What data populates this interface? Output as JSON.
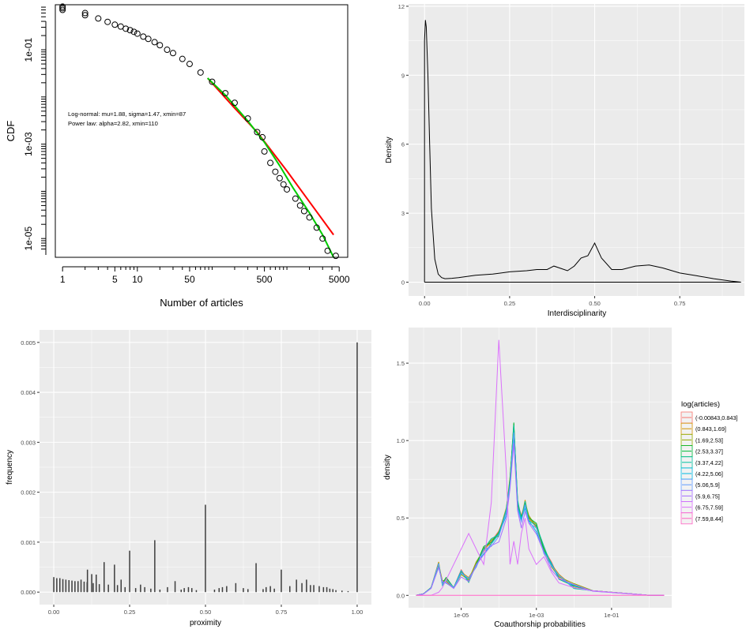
{
  "colors": {
    "panel_bg": "#ebebeb",
    "grid": "#ffffff",
    "ink": "#000000",
    "bar": "#3d3d3d",
    "powerlaw_line": "#ff0000",
    "lognormal_line": "#00cc00",
    "legend_palette": [
      "#f8766d",
      "#d39200",
      "#93aa00",
      "#00ba38",
      "#00c19f",
      "#00b9e3",
      "#619cff",
      "#a56dff",
      "#db72fb",
      "#ff61c3"
    ]
  },
  "chart_data": [
    {
      "id": "cdf",
      "type": "scatter",
      "xlabel": "Number of articles",
      "ylabel": "CDF",
      "x_scale": "log",
      "y_scale": "log",
      "xlim": [
        1,
        5000
      ],
      "ylim": [
        4e-06,
        0.9
      ],
      "xticks": [
        1,
        5,
        10,
        50,
        500,
        5000
      ],
      "xtick_labels": [
        "1",
        "5",
        "10",
        "50",
        "500",
        "5000"
      ],
      "yticks": [
        0.1,
        0.001,
        1e-05
      ],
      "ytick_labels": [
        "1e-01",
        "1e-03",
        "1e-05"
      ],
      "annotations": [
        "Log-normal: mu=1.88, sigma=1.47, xmin=87",
        "Power law: alpha=2.82, xmin=110"
      ],
      "points": [
        [
          1,
          0.82
        ],
        [
          1,
          0.76
        ],
        [
          1,
          0.7
        ],
        [
          2,
          0.6
        ],
        [
          2,
          0.54
        ],
        [
          3,
          0.46
        ],
        [
          4,
          0.39
        ],
        [
          5,
          0.34
        ],
        [
          6,
          0.31
        ],
        [
          7,
          0.28
        ],
        [
          8,
          0.26
        ],
        [
          9,
          0.24
        ],
        [
          10,
          0.22
        ],
        [
          12,
          0.19
        ],
        [
          14,
          0.17
        ],
        [
          17,
          0.145
        ],
        [
          20,
          0.125
        ],
        [
          25,
          0.1
        ],
        [
          30,
          0.085
        ],
        [
          40,
          0.064
        ],
        [
          50,
          0.05
        ],
        [
          70,
          0.033
        ],
        [
          100,
          0.021
        ],
        [
          150,
          0.012
        ],
        [
          200,
          0.0075
        ],
        [
          300,
          0.0035
        ],
        [
          400,
          0.0018
        ],
        [
          470,
          0.0014
        ],
        [
          500,
          0.0007
        ],
        [
          600,
          0.0004
        ],
        [
          700,
          0.00026
        ],
        [
          800,
          0.00019
        ],
        [
          900,
          0.00014
        ],
        [
          1000,
          0.00011
        ],
        [
          1300,
          7e-05
        ],
        [
          1500,
          5e-05
        ],
        [
          1700,
          3.8e-05
        ],
        [
          2000,
          2.8e-05
        ],
        [
          2500,
          1.7e-05
        ],
        [
          3000,
          1e-05
        ],
        [
          3500,
          5.5e-06
        ],
        [
          4500,
          4.3e-06
        ]
      ],
      "series": [
        {
          "line": [
            [
              87,
              0.025
            ],
            [
              200,
              0.0058
            ],
            [
              400,
              0.0018
            ],
            [
              1000,
              0.00027
            ],
            [
              2000,
              6e-05
            ],
            [
              4200,
              1.2e-05
            ]
          ],
          "color_key": "powerlaw_line"
        },
        {
          "line": [
            [
              87,
              0.025
            ],
            [
              150,
              0.011
            ],
            [
              300,
              0.0031
            ],
            [
              500,
              0.0011
            ],
            [
              800,
              0.00035
            ],
            [
              1200,
              0.00012
            ],
            [
              2000,
              3.5e-05
            ],
            [
              3000,
              1.2e-05
            ],
            [
              4200,
              4e-06
            ]
          ],
          "color_key": "lognormal_line"
        }
      ]
    },
    {
      "id": "interdisciplinarity",
      "type": "line",
      "xlabel": "Interdisciplinarity",
      "ylabel": "Density",
      "xlim": [
        -0.047,
        0.94
      ],
      "ylim": [
        -0.6,
        12.1
      ],
      "xticks": [
        0,
        0.25,
        0.5,
        0.75
      ],
      "xtick_labels": [
        "0.00",
        "0.25",
        "0.50",
        "0.75"
      ],
      "yticks": [
        0,
        3,
        6,
        9,
        12
      ],
      "ytick_labels": [
        "0",
        "3",
        "6",
        "9",
        "12"
      ],
      "x": [
        0,
        0.0025,
        0.005,
        0.01,
        0.015,
        0.02,
        0.03,
        0.04,
        0.05,
        0.06,
        0.08,
        0.1,
        0.15,
        0.2,
        0.25,
        0.3,
        0.33,
        0.36,
        0.38,
        0.4,
        0.42,
        0.44,
        0.46,
        0.48,
        0.5,
        0.52,
        0.55,
        0.58,
        0.62,
        0.66,
        0.7,
        0.75,
        0.8,
        0.85,
        0.9,
        0.93
      ],
      "y": [
        10.5,
        11.4,
        11.1,
        9.0,
        6.0,
        3.2,
        1.0,
        0.35,
        0.2,
        0.15,
        0.17,
        0.2,
        0.3,
        0.35,
        0.45,
        0.5,
        0.55,
        0.55,
        0.7,
        0.6,
        0.5,
        0.7,
        1.05,
        1.15,
        1.7,
        1.05,
        0.55,
        0.55,
        0.7,
        0.75,
        0.62,
        0.4,
        0.28,
        0.15,
        0.05,
        0
      ]
    },
    {
      "id": "proximity",
      "type": "bar",
      "xlabel": "proximity",
      "ylabel": "frequency",
      "xlim": [
        -0.047,
        1.047
      ],
      "ylim": [
        -0.00025,
        0.00525
      ],
      "xticks": [
        0,
        0.25,
        0.5,
        0.75,
        1
      ],
      "xtick_labels": [
        "0.00",
        "0.25",
        "0.50",
        "0.75",
        "1.00"
      ],
      "yticks": [
        0,
        0.001,
        0.002,
        0.003,
        0.004,
        0.005
      ],
      "ytick_labels": [
        "0.000",
        "0.001",
        "0.002",
        "0.003",
        "0.004",
        "0.005"
      ],
      "bars": [
        [
          0,
          0.0003
        ],
        [
          0.01,
          0.00028
        ],
        [
          0.02,
          0.00028
        ],
        [
          0.03,
          0.00026
        ],
        [
          0.04,
          0.00025
        ],
        [
          0.05,
          0.00024
        ],
        [
          0.06,
          0.00023
        ],
        [
          0.07,
          0.00022
        ],
        [
          0.08,
          0.00022
        ],
        [
          0.09,
          0.00025
        ],
        [
          0.1,
          0.00021
        ],
        [
          0.11,
          0.0002
        ],
        [
          0.111,
          0.00045
        ],
        [
          0.125,
          0.00036
        ],
        [
          0.13,
          0.00018
        ],
        [
          0.14,
          0.00035
        ],
        [
          0.15,
          0.00016
        ],
        [
          0.166,
          0.0006
        ],
        [
          0.18,
          0.00015
        ],
        [
          0.2,
          0.00055
        ],
        [
          0.21,
          0.00014
        ],
        [
          0.222,
          0.00025
        ],
        [
          0.235,
          0.0001
        ],
        [
          0.25,
          0.00083
        ],
        [
          0.27,
          8e-05
        ],
        [
          0.286,
          0.00015
        ],
        [
          0.3,
          0.0001
        ],
        [
          0.32,
          7e-05
        ],
        [
          0.333,
          0.00104
        ],
        [
          0.35,
          5e-05
        ],
        [
          0.375,
          0.0001
        ],
        [
          0.4,
          0.00022
        ],
        [
          0.42,
          5e-05
        ],
        [
          0.43,
          8e-05
        ],
        [
          0.444,
          0.0001
        ],
        [
          0.455,
          8e-05
        ],
        [
          0.47,
          4e-05
        ],
        [
          0.5,
          0.00175
        ],
        [
          0.53,
          5e-05
        ],
        [
          0.545,
          8e-05
        ],
        [
          0.556,
          0.0001
        ],
        [
          0.57,
          0.00012
        ],
        [
          0.6,
          0.00018
        ],
        [
          0.625,
          8e-05
        ],
        [
          0.64,
          6e-05
        ],
        [
          0.667,
          0.00058
        ],
        [
          0.69,
          6e-05
        ],
        [
          0.7,
          0.0001
        ],
        [
          0.714,
          0.00012
        ],
        [
          0.727,
          7e-05
        ],
        [
          0.75,
          0.00045
        ],
        [
          0.778,
          0.00012
        ],
        [
          0.8,
          0.00025
        ],
        [
          0.818,
          0.00018
        ],
        [
          0.833,
          0.00025
        ],
        [
          0.846,
          0.00014
        ],
        [
          0.857,
          0.00014
        ],
        [
          0.875,
          0.00012
        ],
        [
          0.889,
          0.0001
        ],
        [
          0.9,
          0.0001
        ],
        [
          0.91,
          7e-05
        ],
        [
          0.92,
          6e-05
        ],
        [
          0.93,
          4e-05
        ],
        [
          0.95,
          3e-05
        ],
        [
          0.97,
          2e-05
        ],
        [
          1.0,
          0.005
        ]
      ]
    },
    {
      "id": "coauthorship",
      "type": "line",
      "xlabel": "Coauthorship probabilities",
      "ylabel": "density",
      "x_scale": "log",
      "xlim": [
        -6.4,
        0.6
      ],
      "ylim": [
        -0.08,
        1.73
      ],
      "xticks": [
        -5,
        -3,
        -1
      ],
      "xtick_labels": [
        "1e-05",
        "1e-03",
        "1e-01"
      ],
      "yticks": [
        0,
        0.5,
        1.0,
        1.5
      ],
      "ytick_labels": [
        "0.0",
        "0.5",
        "1.0",
        "1.5"
      ],
      "legend_title": "log(articles)",
      "legend_position": "right",
      "categories": [
        "(-0.00843,0.843]",
        "(0.843,1.69]",
        "(1.69,2.53]",
        "(2.53,3.37]",
        "(3.37,4.22]",
        "(4.22,5.06]",
        "(5.06,5.9]",
        "(5.9,6.75]",
        "(6.75,7.59]",
        "(7.59,8.44]"
      ],
      "x": [
        -6.2,
        -6.0,
        -5.8,
        -5.6,
        -5.5,
        -5.4,
        -5.2,
        -5.0,
        -4.8,
        -4.6,
        -4.4,
        -4.2,
        -4.0,
        -3.8,
        -3.7,
        -3.6,
        -3.5,
        -3.4,
        -3.3,
        -3.2,
        -3.0,
        -2.8,
        -2.6,
        -2.4,
        -2.0,
        -1.5,
        -1.0,
        -0.5,
        0.0,
        0.4
      ],
      "base_profile": [
        0.0,
        0.01,
        0.05,
        0.2,
        0.08,
        0.1,
        0.05,
        0.15,
        0.1,
        0.2,
        0.3,
        0.35,
        0.4,
        0.55,
        0.75,
        1.1,
        0.6,
        0.5,
        0.6,
        0.5,
        0.45,
        0.3,
        0.2,
        0.12,
        0.06,
        0.03,
        0.02,
        0.01,
        0.0,
        0.0
      ],
      "series_scale": [
        1.0,
        1.0,
        1.0,
        1.0,
        1.0,
        0.95,
        0.95,
        0.9,
        0.0,
        0.0
      ],
      "series_6_75_7_59": [
        0.0,
        0.0,
        0.0,
        0.02,
        0.05,
        0.1,
        0.2,
        0.3,
        0.4,
        0.3,
        0.2,
        0.6,
        1.65,
        0.8,
        0.2,
        0.35,
        0.2,
        0.4,
        0.5,
        0.3,
        0.2,
        0.25,
        0.15,
        0.08,
        0.05,
        0.03,
        0.02,
        0.01,
        0.0,
        0.0
      ],
      "series_7_59_8_44": [
        0.0,
        0.0,
        0.0,
        0.0,
        0.0,
        0.0,
        0.0,
        0.0,
        0.0,
        0.0,
        0.0,
        0.0,
        0.0,
        0.0,
        0.0,
        0.0,
        0.0,
        0.0,
        0.0,
        0.0,
        0.0,
        0.0,
        0.0,
        0.0,
        0.0,
        0.0,
        0.0,
        0.0,
        0.0,
        0.0
      ]
    }
  ]
}
